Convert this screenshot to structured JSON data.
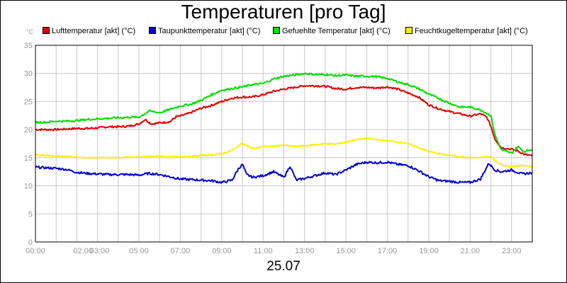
{
  "chart_data": {
    "type": "line",
    "title": "Temperaturen [pro Tag]",
    "xlabel": "25.07",
    "ylabel": "°C",
    "ylim": [
      0,
      35
    ],
    "xlim": [
      0,
      24
    ],
    "yticks": [
      "0",
      "5",
      "10",
      "15",
      "20",
      "25",
      "30",
      "35"
    ],
    "xticks": [
      {
        "h": 0,
        "label": "00:00"
      },
      {
        "h": 2.3,
        "label": "02:00"
      },
      {
        "h": 3.1,
        "label": "03:00"
      },
      {
        "h": 5,
        "label": "05:00"
      },
      {
        "h": 7,
        "label": "07:00"
      },
      {
        "h": 9,
        "label": "09:00"
      },
      {
        "h": 11,
        "label": "11:00"
      },
      {
        "h": 13,
        "label": "13:00"
      },
      {
        "h": 15,
        "label": "15:00"
      },
      {
        "h": 17,
        "label": "17:00"
      },
      {
        "h": 19,
        "label": "19:00"
      },
      {
        "h": 21,
        "label": "21:00"
      },
      {
        "h": 23,
        "label": "23:00"
      }
    ],
    "grid": true,
    "legend_position": "top",
    "series": [
      {
        "name": "Lufttemperatur [akt] (°C)",
        "color": "#e00000",
        "points": [
          [
            0,
            20.0
          ],
          [
            0.5,
            20.0
          ],
          [
            1,
            20.0
          ],
          [
            1.5,
            20.1
          ],
          [
            2,
            20.2
          ],
          [
            2.5,
            20.2
          ],
          [
            3,
            20.3
          ],
          [
            3.5,
            20.5
          ],
          [
            4,
            20.5
          ],
          [
            4.5,
            20.6
          ],
          [
            5,
            21.0
          ],
          [
            5.3,
            21.8
          ],
          [
            5.6,
            21.0
          ],
          [
            6,
            21.2
          ],
          [
            6.5,
            21.4
          ],
          [
            6.8,
            22.3
          ],
          [
            7,
            22.4
          ],
          [
            7.5,
            23.0
          ],
          [
            8,
            23.8
          ],
          [
            8.5,
            24.3
          ],
          [
            9,
            25.0
          ],
          [
            9.5,
            25.6
          ],
          [
            10,
            25.8
          ],
          [
            10.5,
            25.8
          ],
          [
            11,
            26.2
          ],
          [
            11.5,
            26.8
          ],
          [
            12,
            27.2
          ],
          [
            12.5,
            27.5
          ],
          [
            13,
            27.8
          ],
          [
            13.5,
            27.8
          ],
          [
            14,
            27.7
          ],
          [
            14.5,
            27.3
          ],
          [
            15,
            27.2
          ],
          [
            15.5,
            27.5
          ],
          [
            16,
            27.5
          ],
          [
            16.5,
            27.4
          ],
          [
            17,
            27.6
          ],
          [
            17.5,
            27.2
          ],
          [
            18,
            26.5
          ],
          [
            18.5,
            25.8
          ],
          [
            19,
            24.4
          ],
          [
            19.5,
            23.7
          ],
          [
            20,
            23.2
          ],
          [
            20.5,
            22.8
          ],
          [
            21,
            22.4
          ],
          [
            21.5,
            22.8
          ],
          [
            21.8,
            22.2
          ],
          [
            22,
            20.6
          ],
          [
            22.2,
            18.3
          ],
          [
            22.5,
            16.8
          ],
          [
            23,
            16.5
          ],
          [
            23.3,
            16.2
          ],
          [
            23.6,
            15.6
          ],
          [
            24,
            15.3
          ]
        ]
      },
      {
        "name": "Taupunkttemperatur [akt] (°C)",
        "color": "#0000cc",
        "points": [
          [
            0,
            13.3
          ],
          [
            0.5,
            13.2
          ],
          [
            1,
            13.1
          ],
          [
            1.5,
            12.9
          ],
          [
            2,
            12.4
          ],
          [
            2.5,
            12.2
          ],
          [
            3,
            12.1
          ],
          [
            3.5,
            12.0
          ],
          [
            4,
            12.0
          ],
          [
            4.5,
            12.0
          ],
          [
            5,
            11.9
          ],
          [
            5.5,
            12.2
          ],
          [
            6,
            12.0
          ],
          [
            6.5,
            11.6
          ],
          [
            7,
            11.2
          ],
          [
            7.5,
            11.1
          ],
          [
            8,
            11.0
          ],
          [
            8.5,
            10.9
          ],
          [
            9,
            10.6
          ],
          [
            9.5,
            11.0
          ],
          [
            9.8,
            13.0
          ],
          [
            10,
            13.8
          ],
          [
            10.2,
            12.0
          ],
          [
            10.5,
            11.5
          ],
          [
            11,
            11.8
          ],
          [
            11.5,
            12.5
          ],
          [
            12,
            11.5
          ],
          [
            12.3,
            13.5
          ],
          [
            12.6,
            11.0
          ],
          [
            13,
            11.3
          ],
          [
            13.5,
            11.8
          ],
          [
            14,
            12.3
          ],
          [
            14.5,
            12.0
          ],
          [
            15,
            12.8
          ],
          [
            15.5,
            13.8
          ],
          [
            16,
            14.2
          ],
          [
            16.5,
            14.1
          ],
          [
            17,
            14.2
          ],
          [
            17.5,
            13.8
          ],
          [
            18,
            13.6
          ],
          [
            18.5,
            12.7
          ],
          [
            19,
            11.6
          ],
          [
            19.5,
            10.9
          ],
          [
            20,
            10.8
          ],
          [
            20.5,
            10.6
          ],
          [
            21,
            10.6
          ],
          [
            21.5,
            11.2
          ],
          [
            21.9,
            14.0
          ],
          [
            22.2,
            12.8
          ],
          [
            22.5,
            12.5
          ],
          [
            23,
            12.8
          ],
          [
            23.5,
            12.1
          ],
          [
            24,
            12.3
          ]
        ]
      },
      {
        "name": "Gefuehlte Temperatur [akt] (°C)",
        "color": "#00dd00",
        "points": [
          [
            0,
            21.3
          ],
          [
            0.5,
            21.3
          ],
          [
            1,
            21.5
          ],
          [
            1.5,
            21.5
          ],
          [
            2,
            21.6
          ],
          [
            2.5,
            21.8
          ],
          [
            3,
            21.9
          ],
          [
            3.5,
            22.0
          ],
          [
            4,
            22.1
          ],
          [
            4.5,
            22.2
          ],
          [
            5,
            22.2
          ],
          [
            5.5,
            23.3
          ],
          [
            6,
            23.0
          ],
          [
            6.5,
            23.6
          ],
          [
            7,
            24.2
          ],
          [
            7.5,
            24.5
          ],
          [
            8,
            25.2
          ],
          [
            8.5,
            26.2
          ],
          [
            9,
            27.0
          ],
          [
            9.5,
            27.3
          ],
          [
            10,
            27.6
          ],
          [
            10.5,
            28.0
          ],
          [
            11,
            28.2
          ],
          [
            11.5,
            29.0
          ],
          [
            12,
            29.5
          ],
          [
            12.5,
            29.7
          ],
          [
            13,
            30.0
          ],
          [
            13.5,
            29.8
          ],
          [
            14,
            29.8
          ],
          [
            14.5,
            29.6
          ],
          [
            15,
            29.7
          ],
          [
            15.5,
            29.5
          ],
          [
            16,
            29.5
          ],
          [
            16.5,
            29.4
          ],
          [
            17,
            29.1
          ],
          [
            17.5,
            28.5
          ],
          [
            18,
            28.0
          ],
          [
            18.5,
            27.3
          ],
          [
            19,
            26.3
          ],
          [
            19.5,
            25.5
          ],
          [
            20,
            24.7
          ],
          [
            20.5,
            24.0
          ],
          [
            21,
            24.0
          ],
          [
            21.5,
            23.5
          ],
          [
            22,
            22.5
          ],
          [
            22.2,
            19.0
          ],
          [
            22.5,
            16.4
          ],
          [
            23,
            15.8
          ],
          [
            23.3,
            17.0
          ],
          [
            23.6,
            16.1
          ],
          [
            24,
            16.5
          ]
        ]
      },
      {
        "name": "Feuchtkugeltemperatur [akt] (°C)",
        "color": "#ffee00",
        "points": [
          [
            0,
            15.5
          ],
          [
            0.5,
            15.4
          ],
          [
            1,
            15.3
          ],
          [
            1.5,
            15.2
          ],
          [
            2,
            15.1
          ],
          [
            2.5,
            15.0
          ],
          [
            3,
            15.0
          ],
          [
            3.5,
            15.0
          ],
          [
            4,
            15.0
          ],
          [
            4.5,
            15.1
          ],
          [
            5,
            15.1
          ],
          [
            5.5,
            15.2
          ],
          [
            6,
            15.3
          ],
          [
            6.5,
            15.1
          ],
          [
            7,
            15.2
          ],
          [
            7.5,
            15.2
          ],
          [
            8,
            15.4
          ],
          [
            8.5,
            15.5
          ],
          [
            9,
            15.7
          ],
          [
            9.5,
            16.3
          ],
          [
            10,
            17.6
          ],
          [
            10.3,
            17.0
          ],
          [
            10.5,
            16.6
          ],
          [
            11,
            17.0
          ],
          [
            11.5,
            17.0
          ],
          [
            12,
            17.2
          ],
          [
            12.5,
            17.0
          ],
          [
            13,
            17.1
          ],
          [
            13.5,
            17.3
          ],
          [
            14,
            17.5
          ],
          [
            14.5,
            17.4
          ],
          [
            15,
            17.8
          ],
          [
            15.5,
            18.2
          ],
          [
            16,
            18.4
          ],
          [
            16.5,
            18.2
          ],
          [
            17,
            18.0
          ],
          [
            17.5,
            17.8
          ],
          [
            18,
            17.5
          ],
          [
            18.5,
            16.8
          ],
          [
            19,
            16.1
          ],
          [
            19.5,
            15.7
          ],
          [
            20,
            15.4
          ],
          [
            20.5,
            15.2
          ],
          [
            21,
            15.0
          ],
          [
            21.5,
            15.0
          ],
          [
            22,
            15.2
          ],
          [
            22.3,
            14.2
          ],
          [
            22.6,
            13.6
          ],
          [
            23,
            13.4
          ],
          [
            23.5,
            13.6
          ],
          [
            24,
            13.4
          ]
        ]
      }
    ]
  }
}
